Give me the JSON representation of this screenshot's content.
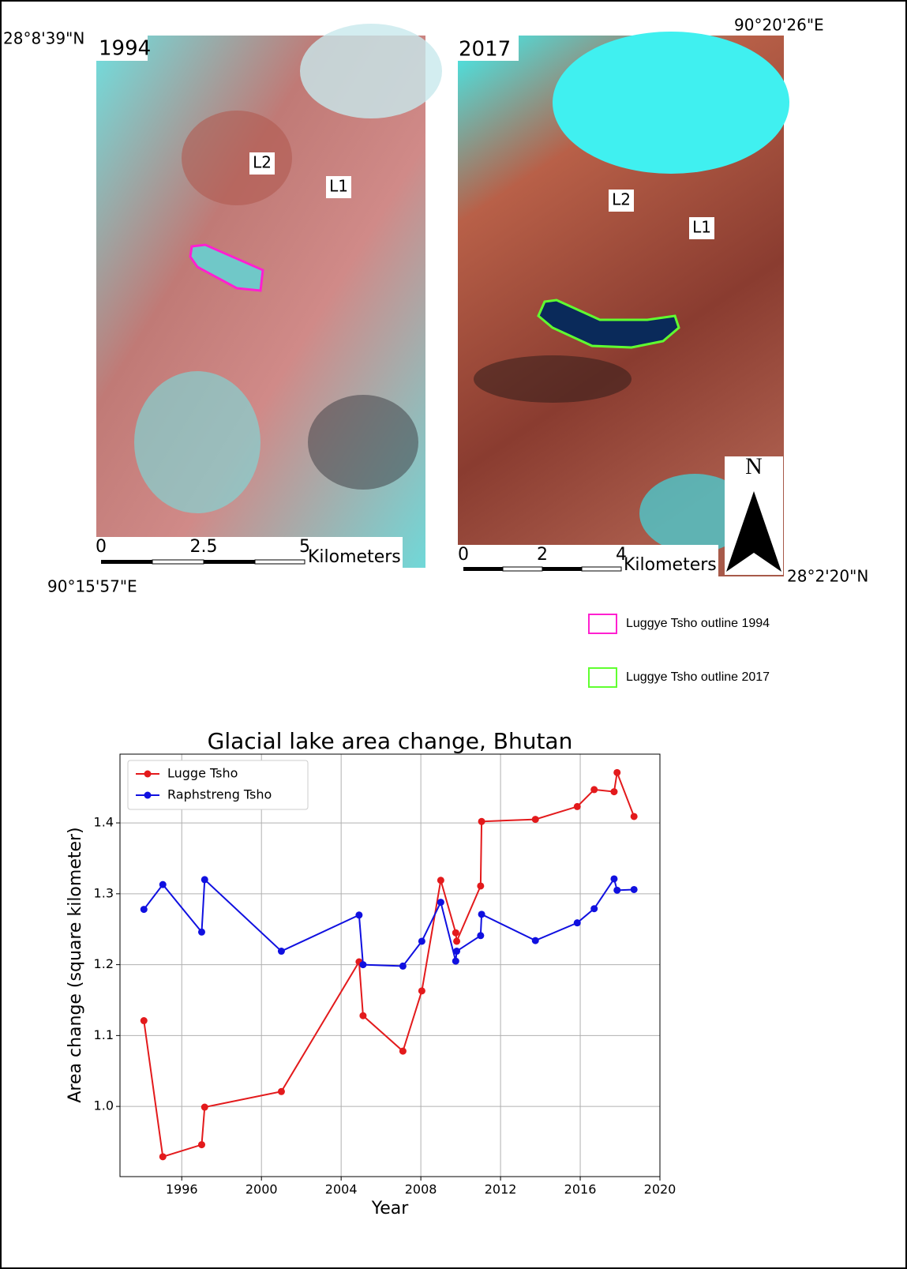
{
  "figure": {
    "top_lat": "28°8'39\"N",
    "right_lon": "90°20'26\"E",
    "left_lon": "90°15'57\"E",
    "bottom_lat": "28°2'20\"N",
    "map_1994": {
      "year": "1994",
      "lake_labels": [
        "L2",
        "L1"
      ],
      "scale_labels": [
        "0",
        "2.5",
        "5"
      ],
      "scale_unit": "Kilometers"
    },
    "map_2017": {
      "year": "2017",
      "lake_labels": [
        "L2",
        "L1"
      ],
      "scale_labels": [
        "0",
        "2",
        "4"
      ],
      "scale_unit": "Kilometers",
      "north": "N"
    },
    "legend": [
      "Luggye Tsho outline 1994",
      "Luggye Tsho outline 2017"
    ]
  },
  "chart_data": {
    "type": "line",
    "title": "Glacial lake area change, Bhutan",
    "x_label": "Year",
    "y_label": "Area change (square kilometer)",
    "x": [
      1994.1,
      1995.05,
      1997.0,
      1997.15,
      2001.0,
      2004.9,
      2005.1,
      2007.1,
      2008.05,
      2009.0,
      2009.75,
      2009.8,
      2011.0,
      2011.05,
      2013.75,
      2015.85,
      2016.7,
      2017.7,
      2017.85,
      2018.7
    ],
    "series": [
      {
        "name": "Lugge Tsho",
        "color": "#e31a1c",
        "values": [
          1.121,
          0.929,
          0.946,
          0.999,
          1.021,
          1.204,
          1.128,
          1.078,
          1.163,
          1.319,
          1.245,
          1.233,
          1.311,
          1.402,
          1.405,
          1.423,
          1.447,
          1.444,
          1.471,
          1.409
        ]
      },
      {
        "name": "Raphstreng Tsho",
        "color": "#1010e0",
        "values": [
          1.278,
          1.313,
          1.246,
          1.32,
          1.219,
          1.27,
          1.2,
          1.198,
          1.233,
          1.288,
          1.205,
          1.219,
          1.241,
          1.271,
          1.234,
          1.259,
          1.279,
          1.321,
          1.305,
          1.306
        ]
      }
    ],
    "xlim": [
      1992.9,
      2020
    ],
    "xticks": [
      1996,
      2000,
      2004,
      2008,
      2012,
      2016,
      2020
    ],
    "ylim": [
      0.901,
      1.497
    ],
    "yticks": [
      1.0,
      {
        "value": 1.1,
        "label": "1.1"
      },
      {
        "value": 1.2,
        "label": "1.2"
      },
      {
        "value": 1.3,
        "label": "1.3"
      },
      {
        "value": 1.4,
        "label": "1.4"
      }
    ],
    "grid": true,
    "legend_position": "upper left"
  }
}
